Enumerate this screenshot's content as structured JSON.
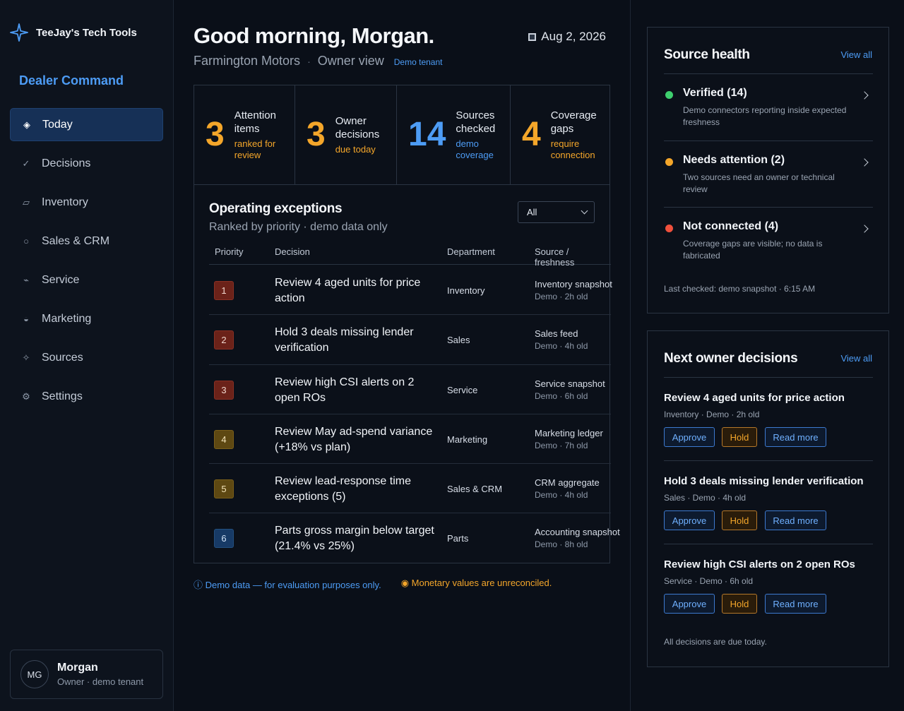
{
  "brand": {
    "name": "TeeJay's Tech Tools",
    "product": "Dealer Command"
  },
  "nav": {
    "items": [
      {
        "label": "Today",
        "icon": "diamond-icon",
        "glyph": "◈",
        "active": true
      },
      {
        "label": "Decisions",
        "icon": "check-icon",
        "glyph": "✓",
        "active": false
      },
      {
        "label": "Inventory",
        "icon": "tag-icon",
        "glyph": "▱",
        "active": false
      },
      {
        "label": "Sales & CRM",
        "icon": "circle-icon",
        "glyph": "○",
        "active": false
      },
      {
        "label": "Service",
        "icon": "wrench-icon",
        "glyph": "⌁",
        "active": false
      },
      {
        "label": "Marketing",
        "icon": "half-circle-icon",
        "glyph": "◒",
        "active": false
      },
      {
        "label": "Sources",
        "icon": "sparkle-icon",
        "glyph": "✧",
        "active": false
      },
      {
        "label": "Settings",
        "icon": "gear-icon",
        "glyph": "⚙",
        "active": false
      }
    ]
  },
  "user": {
    "initials": "MG",
    "name": "Morgan",
    "role": "Owner · demo tenant"
  },
  "header": {
    "greeting": "Good morning, Morgan.",
    "date": "Aug 2, 2026",
    "dealer": "Farmington Motors",
    "separator": "·",
    "view": "Owner view",
    "tenant": "Demo tenant"
  },
  "kpis": [
    {
      "value": "3",
      "label_1": "Attention",
      "label_2": "items",
      "sub_1": "ranked for",
      "sub_2": "review",
      "color": "#f4a62a"
    },
    {
      "value": "3",
      "label_1": "Owner",
      "label_2": "decisions",
      "sub_1": "due today",
      "sub_2": "",
      "color": "#f4a62a"
    },
    {
      "value": "14",
      "label_1": "Sources",
      "label_2": "checked",
      "sub_1": "demo",
      "sub_2": "coverage",
      "color": "#4d9cf5"
    },
    {
      "value": "4",
      "label_1": "Coverage",
      "label_2": "gaps",
      "sub_1": "require",
      "sub_2": "connection",
      "color": "#f4a62a"
    }
  ],
  "exceptions": {
    "title": "Operating exceptions",
    "subtitle": "Ranked by priority · demo data only",
    "filter": "All",
    "columns": [
      "Priority",
      "Decision",
      "Department",
      "Source / freshness"
    ],
    "rows": [
      {
        "priority": "1",
        "decision": "Review 4 aged units for price action",
        "department": "Inventory",
        "source": "Inventory snapshot",
        "freshness": "Demo · 2h old",
        "tone": "red"
      },
      {
        "priority": "2",
        "decision": "Hold 3 deals missing lender verification",
        "department": "Sales",
        "source": "Sales feed",
        "freshness": "Demo · 4h old",
        "tone": "red"
      },
      {
        "priority": "3",
        "decision": "Review high CSI alerts on 2 open ROs",
        "department": "Service",
        "source": "Service snapshot",
        "freshness": "Demo · 6h old",
        "tone": "red"
      },
      {
        "priority": "4",
        "decision": "Review May ad-spend variance (+18% vs plan)",
        "department": "Marketing",
        "source": "Marketing ledger",
        "freshness": "Demo · 7h old",
        "tone": "olive"
      },
      {
        "priority": "5",
        "decision": "Review lead-response time exceptions (5)",
        "department": "Sales & CRM",
        "source": "CRM aggregate",
        "freshness": "Demo · 4h old",
        "tone": "olive"
      },
      {
        "priority": "6",
        "decision": "Parts gross margin below target (21.4% vs 25%)",
        "department": "Parts",
        "source": "Accounting snapshot",
        "freshness": "Demo · 8h old",
        "tone": "blue"
      }
    ]
  },
  "footnotes": {
    "demo": "ⓘ Demo data — for evaluation purposes only.",
    "money": "◉ Monetary values are unreconciled."
  },
  "source_health": {
    "title": "Source health",
    "view_all": "View all",
    "items": [
      {
        "title": "Verified (14)",
        "desc": "Demo connectors reporting inside expected freshness",
        "color": "#3ecf6e"
      },
      {
        "title": "Needs attention (2)",
        "desc": "Two sources need an owner or technical review",
        "color": "#f4a62a"
      },
      {
        "title": "Not connected (4)",
        "desc": "Coverage gaps are visible; no data is fabricated",
        "color": "#f0503c"
      }
    ],
    "last_checked": "Last checked: demo snapshot · 6:15 AM"
  },
  "owner_decisions": {
    "title": "Next owner decisions",
    "view_all": "View all",
    "items": [
      {
        "title": "Review 4 aged units for price action",
        "meta": "Inventory · Demo · 2h old"
      },
      {
        "title": "Hold 3 deals missing lender verification",
        "meta": "Sales · Demo · 4h old"
      },
      {
        "title": "Review high CSI alerts on 2 open ROs",
        "meta": "Service · Demo · 6h old"
      }
    ],
    "approve_label": "Approve",
    "hold_label": "Hold",
    "read_label": "Read more",
    "footer": "All decisions are due today."
  }
}
